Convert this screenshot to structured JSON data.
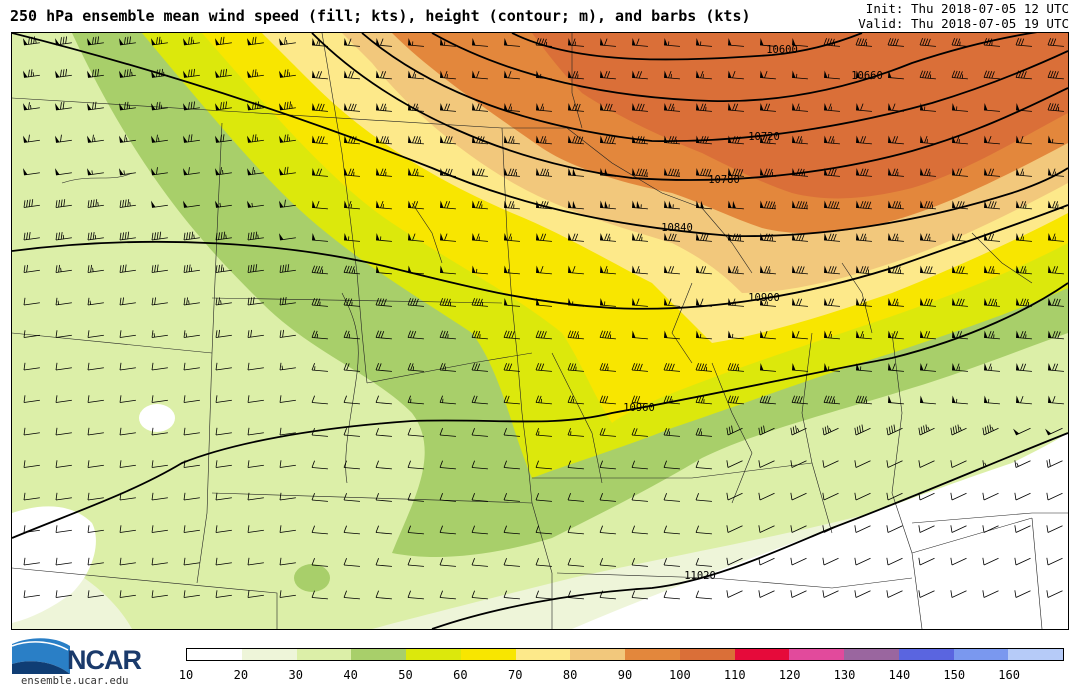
{
  "header": {
    "title": "250 hPa ensemble mean wind speed (fill; kts), height (contour; m), and barbs (kts)",
    "init": "Init: Thu 2018-07-05 12 UTC",
    "valid": "Valid: Thu 2018-07-05 19 UTC"
  },
  "logo": {
    "name": "NCAR",
    "url": "ensemble.ucar.edu"
  },
  "colorbar": {
    "ticks": [
      "10",
      "20",
      "30",
      "40",
      "50",
      "60",
      "70",
      "80",
      "90",
      "100",
      "110",
      "120",
      "130",
      "140",
      "150",
      "160"
    ],
    "colors": [
      "#ffffff",
      "#eef5d9",
      "#dcefa8",
      "#a8cf6a",
      "#dce80c",
      "#f8e600",
      "#fde98a",
      "#f2c87c",
      "#e3873c",
      "#da6f38",
      "#e60a3a",
      "#e24a9c",
      "#9a669f",
      "#5a65e0",
      "#7a98ef",
      "#b6cbf8"
    ]
  },
  "map": {
    "contours": [
      {
        "label": "10600"
      },
      {
        "label": "10660"
      },
      {
        "label": "10720"
      },
      {
        "label": "10780"
      },
      {
        "label": "10840"
      },
      {
        "label": "10900"
      },
      {
        "label": "10960"
      },
      {
        "label": "11020"
      }
    ]
  }
}
